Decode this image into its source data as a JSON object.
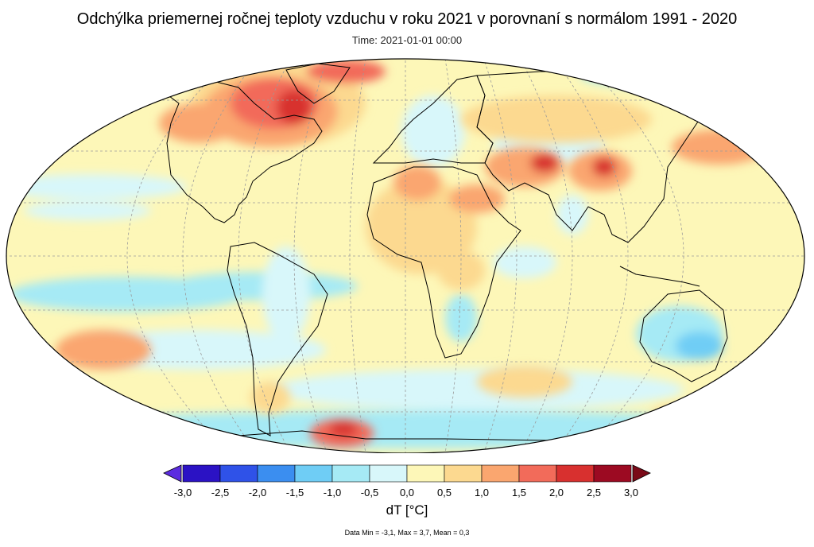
{
  "title": "Odchýlka priemernej ročnej teploty vzduchu v roku 2021 v porovnaní s normálom 1991 - 2020",
  "subtitle": "Time: 2021-01-01 00:00",
  "colorbar": {
    "unit_label": "dT [°C]",
    "ticks": [
      "-3,0",
      "-2,5",
      "-2,0",
      "-1,5",
      "-1,0",
      "-0,5",
      "0,0",
      "0,5",
      "1,0",
      "1,5",
      "2,0",
      "2,5",
      "3,0"
    ],
    "colors": [
      "#2b12c4",
      "#2f52e8",
      "#3b8ef0",
      "#6fcdf5",
      "#a6eaf5",
      "#d8f7fa",
      "#fdf7b8",
      "#fcd990",
      "#faa66f",
      "#f26b5a",
      "#d8302f",
      "#9c0a22"
    ],
    "under_color": "#5b2be0",
    "over_color": "#7a0a18",
    "min_value": -3.0,
    "max_value": 3.0
  },
  "stats": "Data Min = -3,1, Max = 3,7, Mean = 0,3",
  "map": {
    "projection": "robinson",
    "background_color": "#fdf7b8",
    "graticule_step_deg": 20
  }
}
